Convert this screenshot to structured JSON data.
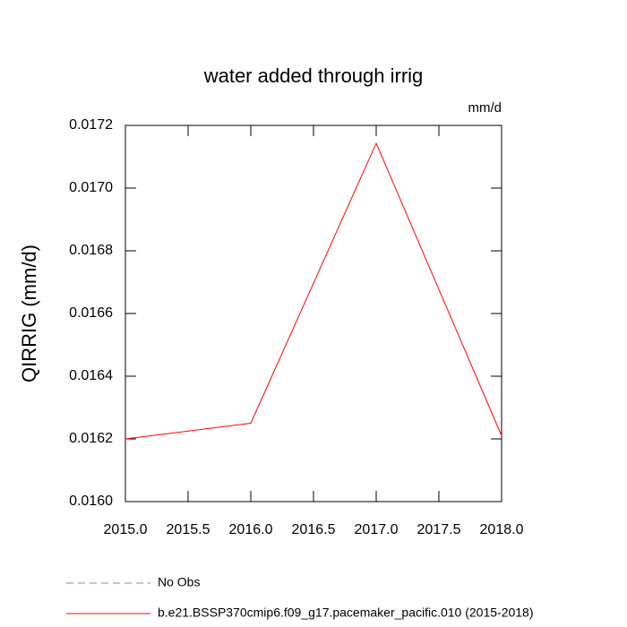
{
  "chart_data": {
    "type": "line",
    "title": "water added through irrig",
    "units": "mm/d",
    "y_label": "QIRRIG  (mm/d)",
    "x": [
      2015,
      2016,
      2017,
      2018
    ],
    "series": [
      {
        "name": "No Obs",
        "color": "#8080ff",
        "dash": true,
        "values": [
          null,
          null,
          null,
          null
        ]
      },
      {
        "name": "b.e21.BSSP370cmip6.f09_g17.pacemaker_pacific.010 (2015-2018)",
        "color": "#ff0000",
        "dash": false,
        "values": [
          0.0162,
          0.01625,
          0.017143,
          0.01621
        ]
      }
    ],
    "xlim": [
      2015,
      2018
    ],
    "xticks": [
      {
        "value": 2015,
        "label": "2015.0"
      },
      {
        "value": 2015.5,
        "label": "2015.5"
      },
      {
        "value": 2016,
        "label": "2016.0"
      },
      {
        "value": 2016.5,
        "label": "2016.5"
      },
      {
        "value": 2017,
        "label": "2017.0"
      },
      {
        "value": 2017.5,
        "label": "2017.5"
      },
      {
        "value": 2018,
        "label": "2018.0"
      }
    ],
    "ylim": [
      0.016,
      0.0172
    ],
    "yticks": [
      {
        "value": 0.016,
        "label": "0.0160"
      },
      {
        "value": 0.0162,
        "label": "0.0162"
      },
      {
        "value": 0.0164,
        "label": "0.0164"
      },
      {
        "value": 0.0166,
        "label": "0.0166"
      },
      {
        "value": 0.0168,
        "label": "0.0168"
      },
      {
        "value": 0.017,
        "label": "0.0170"
      },
      {
        "value": 0.0172,
        "label": "0.0172"
      }
    ],
    "grid": false
  }
}
